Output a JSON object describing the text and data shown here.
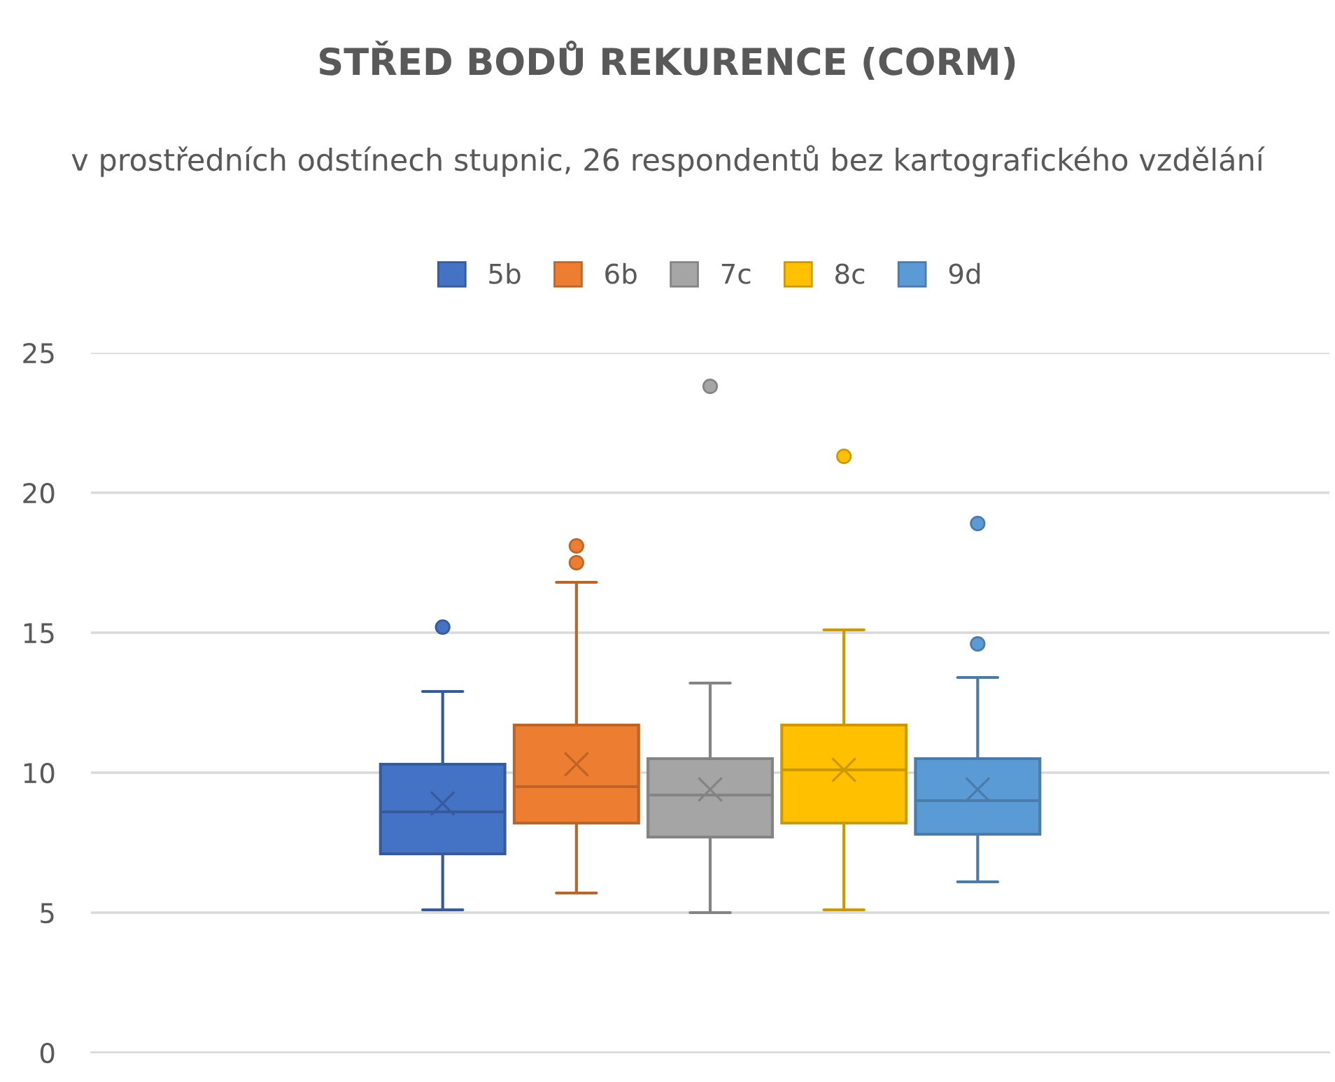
{
  "chart_data": {
    "type": "box",
    "title": "STŘED BODŮ REKURENCE (CORM)",
    "subtitle": "v prostředních odstínech stupnic, 26 respondentů bez kartografického vzdělání",
    "categories": [
      null
    ],
    "series": [
      {
        "name": "5b",
        "color": "#4472c4",
        "boxes": [
          {
            "low": 5.1,
            "q1": 7.1,
            "median": 8.6,
            "q3": 10.3,
            "high": 12.9,
            "mean": 8.9,
            "outliers": [
              15.2
            ]
          }
        ]
      },
      {
        "name": "6b",
        "color": "#ed7d31",
        "boxes": [
          {
            "low": 5.7,
            "q1": 8.2,
            "median": 9.5,
            "q3": 11.7,
            "high": 16.8,
            "mean": 10.3,
            "outliers": [
              17.5,
              18.1
            ]
          }
        ]
      },
      {
        "name": "7c",
        "color": "#a5a5a5",
        "boxes": [
          {
            "low": 5.0,
            "q1": 7.7,
            "median": 9.2,
            "q3": 10.5,
            "high": 13.2,
            "mean": 9.4,
            "outliers": [
              23.8
            ]
          }
        ]
      },
      {
        "name": "8c",
        "color": "#ffc000",
        "boxes": [
          {
            "low": 5.1,
            "q1": 8.2,
            "median": 10.1,
            "q3": 11.7,
            "high": 15.1,
            "mean": 10.1,
            "outliers": [
              21.3
            ]
          }
        ]
      },
      {
        "name": "9d",
        "color": "#5b9bd5",
        "boxes": [
          {
            "low": 6.1,
            "q1": 7.8,
            "median": 9.0,
            "q3": 10.5,
            "high": 13.4,
            "mean": 9.4,
            "outliers": [
              14.6,
              18.9
            ]
          }
        ]
      }
    ],
    "ylim": [
      0,
      25
    ],
    "yticks": [
      0,
      5,
      10,
      15,
      20,
      25
    ],
    "grid": "y",
    "legend": "top"
  }
}
